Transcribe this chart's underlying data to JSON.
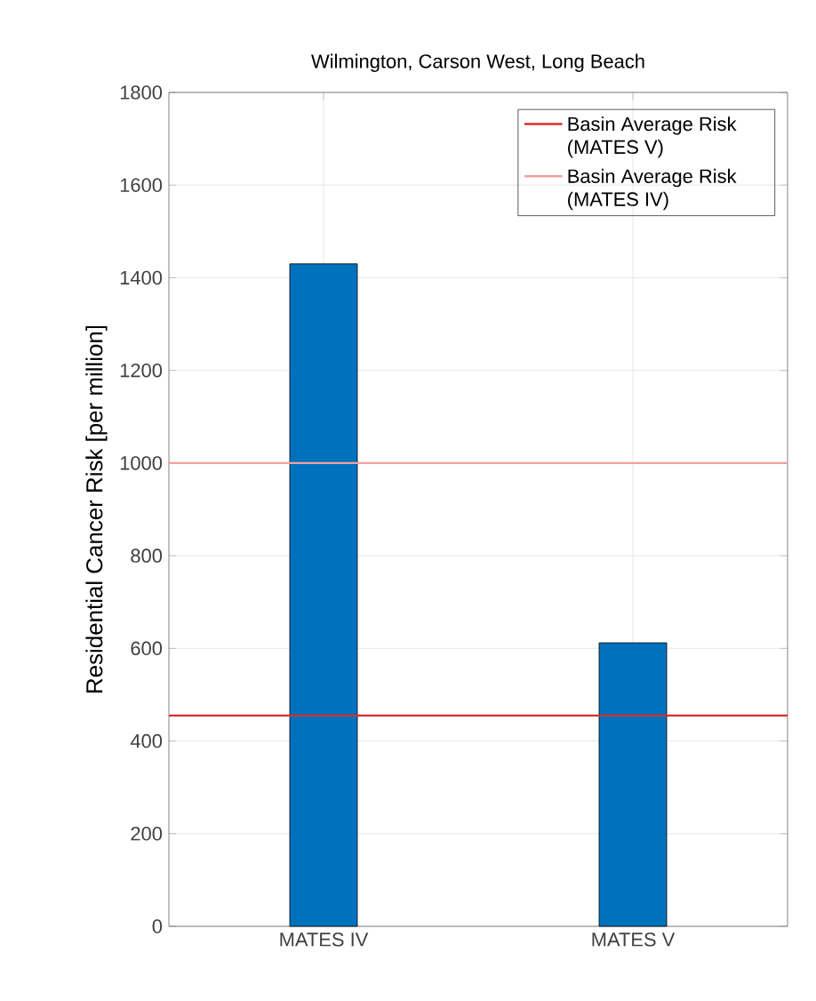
{
  "chart_data": {
    "type": "bar",
    "title": "Wilmington, Carson West, Long Beach",
    "ylabel": "Residential Cancer Risk [per million]",
    "categories": [
      "MATES IV",
      "MATES V"
    ],
    "values": [
      1430,
      612
    ],
    "color": "#0072bd",
    "ylim": [
      0,
      1800
    ],
    "yticks": [
      0,
      200,
      400,
      600,
      800,
      1000,
      1200,
      1400,
      1600,
      1800
    ],
    "grid": true,
    "legend": "top right",
    "ref_lines": [
      {
        "axis": "y",
        "value": 455,
        "label": "Basin Average Risk (MATES V)",
        "color": "#d62f2f"
      },
      {
        "axis": "y",
        "value": 1000,
        "label": "Basin Average Risk (MATES IV)",
        "color": "#f4a0a0"
      }
    ]
  }
}
